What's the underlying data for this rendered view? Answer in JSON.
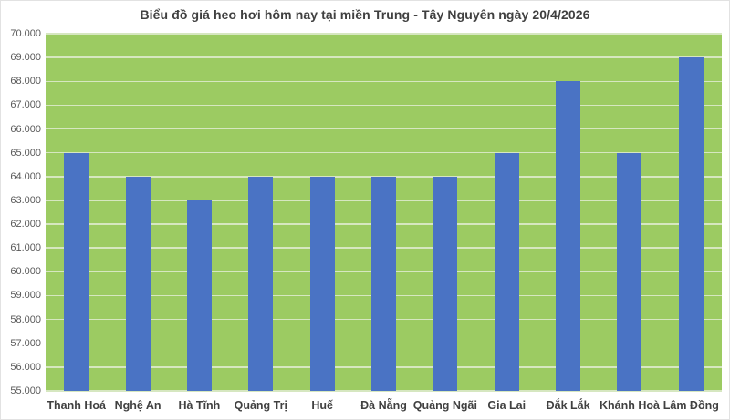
{
  "chart_data": {
    "type": "bar",
    "title": "Biểu đồ giá heo hơi hôm nay tại miền Trung - Tây Nguyên ngày 20/4/2026",
    "categories": [
      "Thanh Hoá",
      "Nghệ An",
      "Hà Tĩnh",
      "Quảng Trị",
      "Huế",
      "Đà Nẵng",
      "Quảng Ngãi",
      "Gia Lai",
      "Đắk Lắk",
      "Khánh Hoà",
      "Lâm Đồng"
    ],
    "values": [
      65000,
      64000,
      63000,
      64000,
      64000,
      64000,
      64000,
      65000,
      68000,
      65000,
      69000
    ],
    "xlabel": "",
    "ylabel": "",
    "ylim": [
      55000,
      70000
    ],
    "y_tick_step": 1000,
    "y_tick_labels_top_to_bottom": [
      "70.000",
      "69.000",
      "68.000",
      "67.000",
      "66.000",
      "65.000",
      "64.000",
      "63.000",
      "62.000",
      "61.000",
      "60.000",
      "59.000",
      "58.000",
      "57.000",
      "56.000",
      "55.000"
    ],
    "grid": "horizontal",
    "legend": "none",
    "colors": {
      "background": "#ffffff",
      "plot_background": "#9ccb62",
      "bar": "#4a73c4",
      "gridline": "#d6e7c0",
      "title_text": "#404040",
      "axis_tick_text": "#595959",
      "category_text": "#404040",
      "chart_border": "#e2e2e2"
    }
  }
}
